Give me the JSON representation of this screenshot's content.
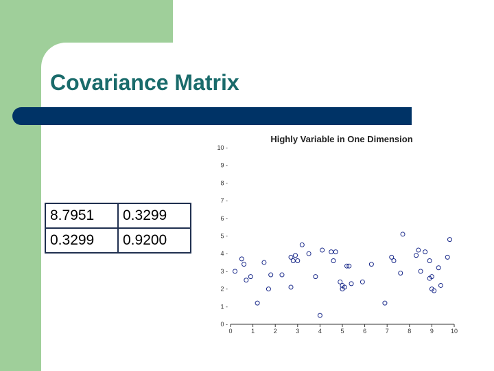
{
  "slide": {
    "title": "Covariance Matrix",
    "colors": {
      "title": "#1a6b6b",
      "bar": "#003366",
      "accent_green": "#9fcf9a",
      "points": "#1a2a8a"
    }
  },
  "matrix": {
    "rows": [
      [
        "8.7951",
        "0.3299"
      ],
      [
        "0.3299",
        "0.9200"
      ]
    ]
  },
  "chart_data": {
    "type": "scatter",
    "title": "Highly Variable in One Dimension",
    "xlim": [
      0,
      10
    ],
    "ylim": [
      0,
      10
    ],
    "xticks": [
      "0",
      "1",
      "2",
      "3",
      "4",
      "5",
      "6",
      "7",
      "8",
      "9",
      "10"
    ],
    "yticks": [
      "0",
      "1",
      "2",
      "3",
      "4",
      "5",
      "6",
      "7",
      "8",
      "9",
      "10"
    ],
    "grid": false,
    "marker": "open-circle",
    "points": [
      [
        0.2,
        3.0
      ],
      [
        0.5,
        3.7
      ],
      [
        0.6,
        3.4
      ],
      [
        0.7,
        2.5
      ],
      [
        0.9,
        2.7
      ],
      [
        1.2,
        1.2
      ],
      [
        1.5,
        3.5
      ],
      [
        1.7,
        2.0
      ],
      [
        1.8,
        2.8
      ],
      [
        2.3,
        2.8
      ],
      [
        2.7,
        2.1
      ],
      [
        2.7,
        3.8
      ],
      [
        2.8,
        3.6
      ],
      [
        2.9,
        3.9
      ],
      [
        3.0,
        3.6
      ],
      [
        3.2,
        4.5
      ],
      [
        3.5,
        4.0
      ],
      [
        3.8,
        2.7
      ],
      [
        4.0,
        0.5
      ],
      [
        4.1,
        4.2
      ],
      [
        4.5,
        4.1
      ],
      [
        4.6,
        3.6
      ],
      [
        4.7,
        4.1
      ],
      [
        4.9,
        2.4
      ],
      [
        5.0,
        2.2
      ],
      [
        5.0,
        2.0
      ],
      [
        5.1,
        2.1
      ],
      [
        5.2,
        3.3
      ],
      [
        5.3,
        3.3
      ],
      [
        5.4,
        2.3
      ],
      [
        5.9,
        2.4
      ],
      [
        6.3,
        3.4
      ],
      [
        6.9,
        1.2
      ],
      [
        7.2,
        3.8
      ],
      [
        7.3,
        3.6
      ],
      [
        7.6,
        2.9
      ],
      [
        7.7,
        5.1
      ],
      [
        8.3,
        3.9
      ],
      [
        8.4,
        4.2
      ],
      [
        8.5,
        3.0
      ],
      [
        8.7,
        4.1
      ],
      [
        8.9,
        3.6
      ],
      [
        8.9,
        2.6
      ],
      [
        9.0,
        2.0
      ],
      [
        9.1,
        1.9
      ],
      [
        9.0,
        2.7
      ],
      [
        9.3,
        3.2
      ],
      [
        9.4,
        2.2
      ],
      [
        9.7,
        3.8
      ],
      [
        9.8,
        4.8
      ]
    ]
  }
}
